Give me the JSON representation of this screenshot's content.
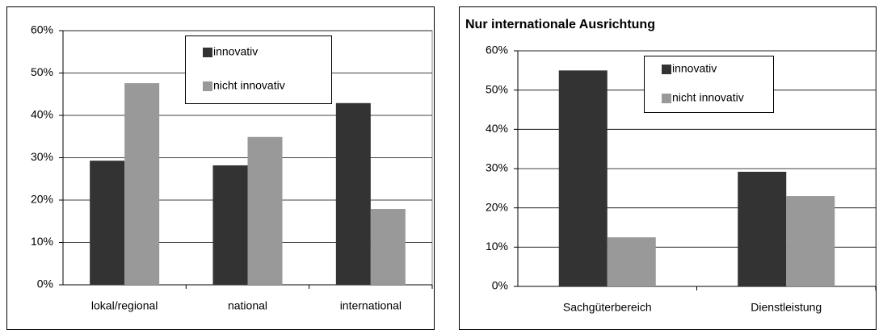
{
  "chart_data": [
    {
      "type": "bar",
      "categories": [
        "lokal/regional",
        "national",
        "international"
      ],
      "series": [
        {
          "name": "innovativ",
          "color": "#333333",
          "values": [
            29.3,
            28.2,
            42.9
          ]
        },
        {
          "name": "nicht innovativ",
          "color": "#999999",
          "values": [
            47.6,
            34.9,
            17.9
          ]
        }
      ],
      "ylim": [
        0,
        60
      ],
      "yticks": [
        {
          "value": 0,
          "label": "0%"
        },
        {
          "value": 10,
          "label": "10%"
        },
        {
          "value": 20,
          "label": "20%"
        },
        {
          "value": 30,
          "label": "30%"
        },
        {
          "value": 40,
          "label": "40%"
        },
        {
          "value": 50,
          "label": "50%"
        },
        {
          "value": 60,
          "label": "60%"
        }
      ],
      "grid": true,
      "legend": "top"
    },
    {
      "type": "bar",
      "title": "Nur internationale Ausrichtung",
      "categories": [
        "Sachgüterbereich",
        "Dienstleistung"
      ],
      "series": [
        {
          "name": "innovativ",
          "color": "#333333",
          "values": [
            55,
            29.2
          ]
        },
        {
          "name": "nicht innovativ",
          "color": "#999999",
          "values": [
            12.5,
            23
          ]
        }
      ],
      "ylim": [
        0,
        60
      ],
      "yticks": [
        {
          "value": 0,
          "label": "0%"
        },
        {
          "value": 10,
          "label": "10%"
        },
        {
          "value": 20,
          "label": "20%"
        },
        {
          "value": 30,
          "label": "30%"
        },
        {
          "value": 40,
          "label": "40%"
        },
        {
          "value": 50,
          "label": "50%"
        },
        {
          "value": 60,
          "label": "60%"
        }
      ],
      "grid": true,
      "legend": "top"
    }
  ]
}
